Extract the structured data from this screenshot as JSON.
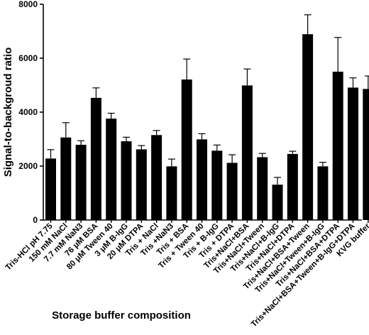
{
  "chart_data": {
    "type": "bar",
    "xlabel": "Storage buffer composition",
    "ylabel": "Signal-to-backgroud ratio",
    "ylim": [
      0,
      8000
    ],
    "yticks": [
      0,
      2000,
      4000,
      6000,
      8000
    ],
    "grid": false,
    "legend": "none",
    "bar_color": "#000000",
    "error_bars": "upper",
    "categories": [
      "Tris-HCl pH 7.75",
      "150 mM NaCl",
      "7.7 mM NaN3",
      "76 μM BSA",
      "80 μM Tween 40",
      "3 μM B-IgG",
      "20 μM DTPA",
      "Tris + NaCl",
      "Tris +NaN3",
      "Tris + BSA",
      "Tris + Tween 40",
      "Tris + B-IgG",
      "Tris + DTPA",
      "Tris+NaCl+BSA",
      "Tris+NaCl+Tween",
      "Tris+NaCl+B-IgG",
      "Tris+NaCl+DTPA",
      "Tris+NaCl+BSA+Tween",
      "Tris+NaCl+Tween+B-IgG",
      "Tris+NaCl+BSA+DTPA",
      "Tris+NaCl+BSA+Tween+B-IgG+DTPA",
      "KVG buffer"
    ],
    "values": [
      2280,
      3060,
      2790,
      4530,
      3760,
      2920,
      2620,
      3150,
      1990,
      5210,
      2990,
      2570,
      2120,
      4990,
      2330,
      1310,
      2450,
      6890,
      1990,
      5500,
      4910,
      4860
    ],
    "errors": [
      330,
      550,
      150,
      370,
      200,
      150,
      140,
      170,
      270,
      760,
      210,
      210,
      300,
      610,
      140,
      270,
      100,
      720,
      150,
      1270,
      360,
      480
    ]
  }
}
